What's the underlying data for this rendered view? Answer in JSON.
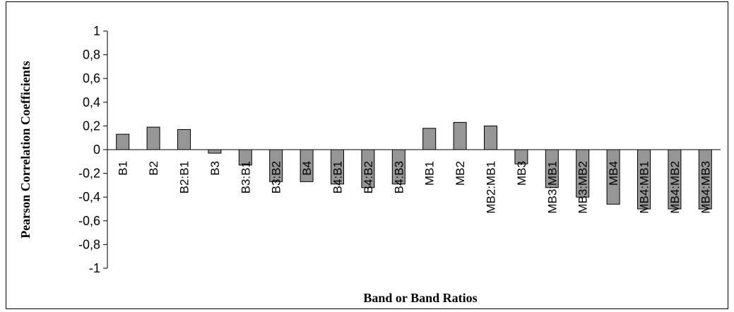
{
  "chart_data": {
    "type": "bar",
    "title": "",
    "xlabel": "Band or Band Ratios",
    "ylabel": "Pearson Correlation Coefficients",
    "ylim": [
      -1,
      1
    ],
    "yticks": [
      1,
      0.8,
      0.6,
      0.4,
      0.2,
      0,
      -0.2,
      -0.4,
      -0.6,
      -0.8,
      -1
    ],
    "ytick_labels": [
      "1",
      "0,8",
      "0,6",
      "0,4",
      "0,2",
      "0",
      "-0,2",
      "-0,4",
      "-0,6",
      "-0,8",
      "-1"
    ],
    "categories": [
      "B1",
      "B2",
      "B2:B1",
      "B3",
      "B3:B1",
      "B3:B2",
      "B4",
      "B4:B1",
      "B4:B2",
      "B4:B3",
      "MB1",
      "MB2",
      "MB2:MB1",
      "MB3",
      "MB3:MB1",
      "MB3:MB2",
      "MB4",
      "MB4:MB1",
      "MB4:MB2",
      "MB4:MB3"
    ],
    "values": [
      0.13,
      0.19,
      0.17,
      -0.03,
      -0.13,
      -0.27,
      -0.27,
      -0.29,
      -0.32,
      -0.29,
      0.18,
      0.23,
      0.2,
      -0.12,
      -0.32,
      -0.4,
      -0.46,
      -0.5,
      -0.5,
      -0.5
    ],
    "bar_color": "#969696",
    "grid": false,
    "legend": "none"
  }
}
